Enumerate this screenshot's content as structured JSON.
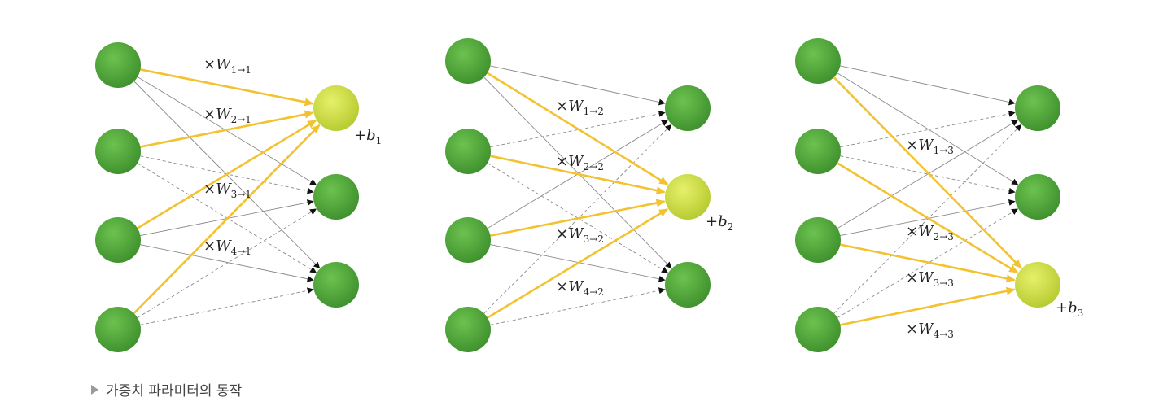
{
  "colors": {
    "input_node": "#4ea63a",
    "output_node": "#4ea63a",
    "active_node": "#c8dc3c",
    "active_edge": "#f2c230",
    "inactive_edge": "#8a8a8a"
  },
  "panels": [
    {
      "active_output": 1,
      "weights": [
        {
          "prefix": "×W",
          "sub": "1→1"
        },
        {
          "prefix": "×W",
          "sub": "2→1"
        },
        {
          "prefix": "×W",
          "sub": "3→1"
        },
        {
          "prefix": "×W",
          "sub": "4→1"
        }
      ],
      "bias": {
        "prefix": "+b",
        "sub": "1"
      }
    },
    {
      "active_output": 2,
      "weights": [
        {
          "prefix": "×W",
          "sub": "1→2"
        },
        {
          "prefix": "×W",
          "sub": "2→2"
        },
        {
          "prefix": "×W",
          "sub": "3→2"
        },
        {
          "prefix": "×W",
          "sub": "4→2"
        }
      ],
      "bias": {
        "prefix": "+b",
        "sub": "2"
      }
    },
    {
      "active_output": 3,
      "weights": [
        {
          "prefix": "×W",
          "sub": "1→3"
        },
        {
          "prefix": "×W",
          "sub": "2→3"
        },
        {
          "prefix": "×W",
          "sub": "3→3"
        },
        {
          "prefix": "×W",
          "sub": "4→3"
        }
      ],
      "bias": {
        "prefix": "+b",
        "sub": "3"
      }
    }
  ],
  "caption": "가중치 파라미터의 동작"
}
